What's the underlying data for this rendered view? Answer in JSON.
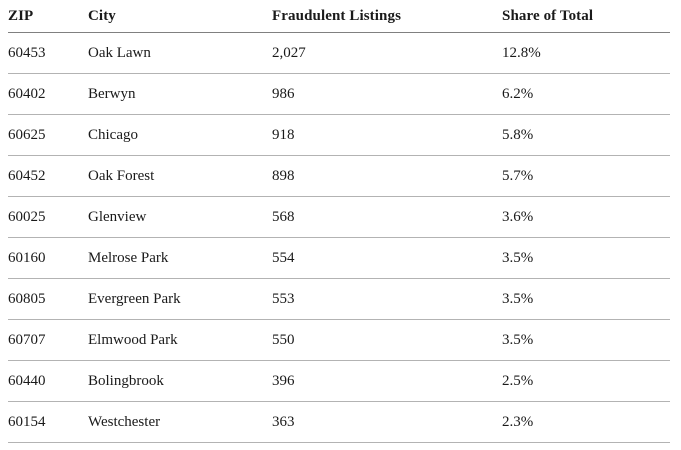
{
  "chart_data": {
    "type": "table",
    "columns": [
      "ZIP",
      "City",
      "Fraudulent Listings",
      "Share of Total"
    ],
    "rows": [
      {
        "zip": "60453",
        "city": "Oak Lawn",
        "listings": "2,027",
        "share": "12.8%"
      },
      {
        "zip": "60402",
        "city": "Berwyn",
        "listings": "986",
        "share": "6.2%"
      },
      {
        "zip": "60625",
        "city": "Chicago",
        "listings": "918",
        "share": "5.8%"
      },
      {
        "zip": "60452",
        "city": "Oak Forest",
        "listings": "898",
        "share": "5.7%"
      },
      {
        "zip": "60025",
        "city": "Glenview",
        "listings": "568",
        "share": "3.6%"
      },
      {
        "zip": "60160",
        "city": "Melrose Park",
        "listings": "554",
        "share": "3.5%"
      },
      {
        "zip": "60805",
        "city": "Evergreen Park",
        "listings": "553",
        "share": "3.5%"
      },
      {
        "zip": "60707",
        "city": "Elmwood Park",
        "listings": "550",
        "share": "3.5%"
      },
      {
        "zip": "60440",
        "city": "Bolingbrook",
        "listings": "396",
        "share": "2.5%"
      },
      {
        "zip": "60154",
        "city": "Westchester",
        "listings": "363",
        "share": "2.3%"
      }
    ]
  },
  "colors": {
    "text": "#1a1a1a",
    "header_divider": "#808080",
    "row_divider": "#b3b3b3",
    "background": "#ffffff"
  }
}
